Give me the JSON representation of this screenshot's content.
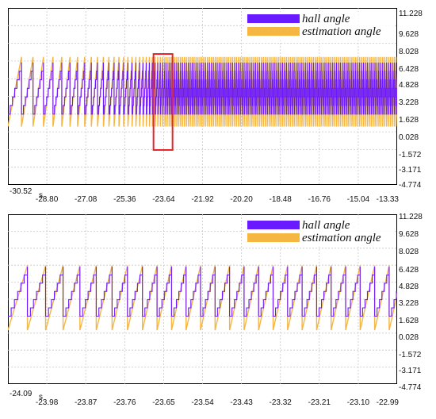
{
  "chart_data": [
    {
      "type": "line",
      "title": "",
      "x_unit": "s",
      "xlim": [
        -30.52,
        -13.33
      ],
      "ylim": [
        -4.774,
        11.228
      ],
      "x_ticks": [
        "-30.52",
        "-28.80",
        "-27.08",
        "-25.36",
        "-23.64",
        "-21.92",
        "-20.20",
        "-18.48",
        "-16.76",
        "-15.04",
        "-13.33"
      ],
      "y_ticks": [
        "11.228",
        "9.628",
        "8.028",
        "6.428",
        "4.828",
        "3.228",
        "1.628",
        "0.028",
        "-1.572",
        "-3.171",
        "-4.774"
      ],
      "grid": true,
      "legend_position": "top-right",
      "highlight_box": {
        "x_range": [
          -24.09,
          -23.25
        ],
        "color": "#e8262a"
      },
      "series": [
        {
          "name": "hall angle",
          "color": "#6a1aff",
          "waveform": "staircase-sawtooth",
          "min": 1.628,
          "max": 6.283,
          "steps_per_cycle": 6,
          "period_start": 0.6,
          "period_end": 0.085,
          "x_start": -30.52,
          "accel_end": -23.4
        },
        {
          "name": "estimation angle",
          "color": "#f5b642",
          "waveform": "sawtooth",
          "min": 0.5,
          "max": 6.8,
          "period_start": 0.6,
          "period_end": 0.085,
          "x_start": -30.52,
          "accel_end": -23.4
        }
      ]
    },
    {
      "type": "line",
      "title": "",
      "x_unit": "s",
      "xlim": [
        -24.09,
        -22.99
      ],
      "ylim": [
        -4.774,
        11.228
      ],
      "x_ticks": [
        "-24.09",
        "-23.98",
        "-23.87",
        "-23.76",
        "-23.65",
        "-23.54",
        "-23.43",
        "-23.32",
        "-23.21",
        "-23.10",
        "-22.99"
      ],
      "y_ticks": [
        "11.228",
        "9.628",
        "8.028",
        "6.428",
        "4.828",
        "3.228",
        "1.628",
        "0.028",
        "-1.572",
        "-3.171",
        "-4.774"
      ],
      "grid": true,
      "legend_position": "top-right",
      "series": [
        {
          "name": "hall angle",
          "color": "#6a1aff",
          "waveform": "staircase-sawtooth",
          "min": 1.628,
          "max": 6.283,
          "steps_per_cycle": 6,
          "period_start": 0.055,
          "period_end": 0.041,
          "x_start": -24.09,
          "accel_end": -23.7
        },
        {
          "name": "estimation angle",
          "color": "#f5b642",
          "waveform": "sawtooth",
          "min": 0.3,
          "max": 6.4,
          "period_start": 0.055,
          "period_end": 0.041,
          "x_start": -24.09,
          "accel_end": -23.7
        }
      ]
    }
  ]
}
